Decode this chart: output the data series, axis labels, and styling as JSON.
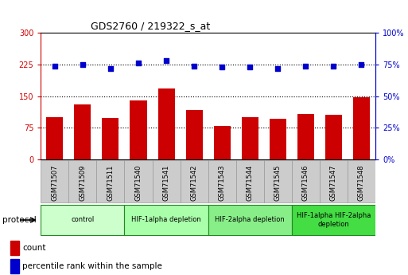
{
  "title": "GDS2760 / 219322_s_at",
  "samples": [
    "GSM71507",
    "GSM71509",
    "GSM71511",
    "GSM71540",
    "GSM71541",
    "GSM71542",
    "GSM71543",
    "GSM71544",
    "GSM71545",
    "GSM71546",
    "GSM71547",
    "GSM71548"
  ],
  "counts": [
    100,
    130,
    98,
    140,
    168,
    118,
    80,
    100,
    96,
    108,
    106,
    148
  ],
  "percentile_ranks": [
    74,
    75,
    72,
    76,
    78,
    74,
    73,
    73,
    72,
    74,
    74,
    75
  ],
  "bar_color": "#cc0000",
  "dot_color": "#0000cc",
  "left_ylim": [
    0,
    300
  ],
  "left_yticks": [
    0,
    75,
    150,
    225,
    300
  ],
  "right_ylim": [
    0,
    100
  ],
  "right_yticks": [
    0,
    25,
    50,
    75,
    100
  ],
  "right_yticklabels": [
    "0%",
    "25%",
    "50%",
    "75%",
    "100%"
  ],
  "hgrid_values": [
    75,
    150,
    225
  ],
  "protocol_groups": [
    {
      "label": "control",
      "start": 0,
      "end": 3,
      "color": "#ccffcc"
    },
    {
      "label": "HIF-1alpha depletion",
      "start": 3,
      "end": 6,
      "color": "#aaffaa"
    },
    {
      "label": "HIF-2alpha depletion",
      "start": 6,
      "end": 9,
      "color": "#88ee88"
    },
    {
      "label": "HIF-1alpha HIF-2alpha\ndepletion",
      "start": 9,
      "end": 12,
      "color": "#44dd44"
    }
  ],
  "left_tick_color": "#cc0000",
  "right_tick_color": "#0000cc",
  "xtick_bg": "#cccccc",
  "xtick_edge": "#999999"
}
